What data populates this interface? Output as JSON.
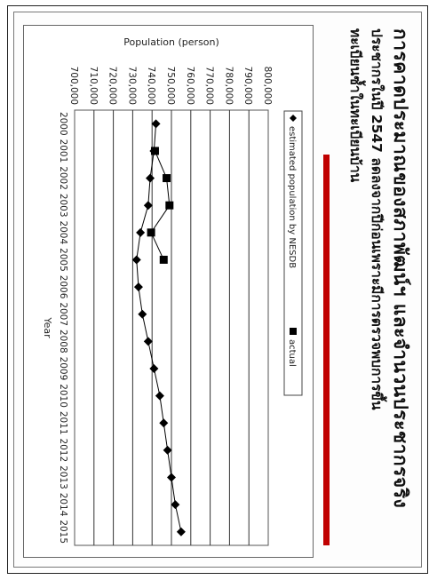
{
  "slide": {
    "title_line1": "การคาดประมาณของสภาพัฒน์ฯ และจำนวนประชากรจริง",
    "title_line2": "ประชากรในปี 2547 ลดลงจากปีก่อนเพราะมีการตรวจพบการขึ้น",
    "title_line3": "ทะเบียนซ้ำในทะเบียนบ้าน"
  },
  "chart_data": {
    "type": "line",
    "xlabel": "Year",
    "ylabel": "Population (person)",
    "ylim": [
      700000,
      800000
    ],
    "yticks": [
      "700,000",
      "710,000",
      "720,000",
      "730,000",
      "740,000",
      "750,000",
      "760,000",
      "770,000",
      "780,000",
      "790,000",
      "800,000"
    ],
    "grid": true,
    "legend": "top-left",
    "x": [
      "2000",
      "2001",
      "2002",
      "2003",
      "2004",
      "2005",
      "2006",
      "2007",
      "2008",
      "2009",
      "2010",
      "2011",
      "2012",
      "2013",
      "2014",
      "2015"
    ],
    "series": [
      {
        "name": "estimated population by NESDB",
        "marker": "diamond",
        "color": "#000000",
        "values": [
          742000,
          741000,
          739000,
          738000,
          734000,
          732000,
          733000,
          735000,
          738000,
          741000,
          744000,
          746000,
          748000,
          750000,
          752000,
          755000
        ]
      },
      {
        "name": "actual",
        "marker": "square",
        "color": "#000000",
        "values": [
          null,
          741500,
          747500,
          749000,
          739500,
          746000,
          null,
          null,
          null,
          null,
          null,
          null,
          null,
          null,
          null,
          null
        ]
      }
    ]
  }
}
